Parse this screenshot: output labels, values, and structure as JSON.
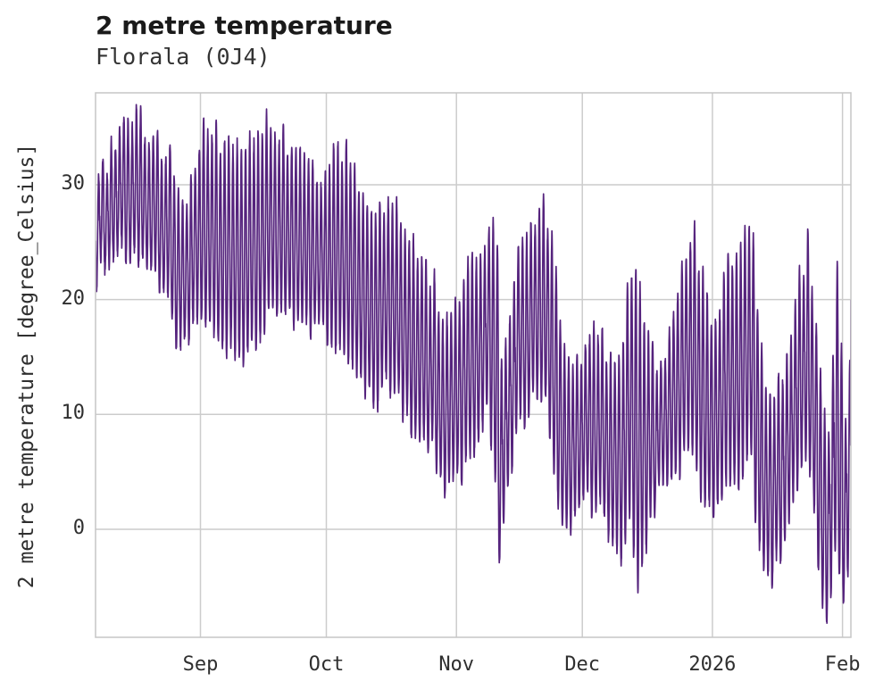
{
  "header": {
    "title": "2 metre temperature",
    "subtitle": "Florala (0J4)"
  },
  "chart_data": {
    "type": "line",
    "title": "2 metre temperature",
    "subtitle": "Florala (0J4)",
    "xlabel": "",
    "ylabel": "2 metre temperature [degree_Celsius]",
    "series_name": "2 metre temperature",
    "resolution": "hourly",
    "x_start_date": "2025-08-07",
    "x_end_date": "2026-02-03",
    "x_total_days": 180,
    "ylim": [
      -9.4,
      38.0
    ],
    "yticks": [
      30,
      20,
      10,
      0
    ],
    "xticks": [
      {
        "label": "Sep",
        "day": 25
      },
      {
        "label": "Oct",
        "day": 55
      },
      {
        "label": "Nov",
        "day": 86
      },
      {
        "label": "Dec",
        "day": 116
      },
      {
        "label": "2026",
        "day": 147
      },
      {
        "label": "Feb",
        "day": 178
      }
    ],
    "grid": true,
    "legend": "none",
    "line_color": "#55237d",
    "grid_color": "#cccccc",
    "spine_color": "#c6c6c6",
    "text_color": "#2f2f2f",
    "background_color": "#ffffff",
    "envelope_format": [
      "day_index",
      "date",
      "daily_min_c",
      "daily_max_c"
    ],
    "daily_envelope": [
      [
        0,
        "Aug 07",
        22,
        30.2
      ],
      [
        2,
        "Aug 09",
        23.5,
        32
      ],
      [
        5,
        "Aug 12",
        24,
        35.5
      ],
      [
        8,
        "Aug 15",
        23.5,
        36.3
      ],
      [
        11,
        "Aug 18",
        23,
        34.8
      ],
      [
        14,
        "Aug 21",
        22,
        33.5
      ],
      [
        17,
        "Aug 24",
        20,
        32.5
      ],
      [
        20,
        "Aug 27",
        15,
        27.5
      ],
      [
        22,
        "Aug 29",
        17,
        31.5
      ],
      [
        25,
        "Sep 01",
        18,
        35.8
      ],
      [
        28,
        "Sep 04",
        17,
        34.5
      ],
      [
        31,
        "Sep 07",
        16,
        33
      ],
      [
        34,
        "Sep 10",
        14.8,
        32
      ],
      [
        37,
        "Sep 13",
        15.5,
        33.5
      ],
      [
        40,
        "Sep 16",
        18,
        35.9
      ],
      [
        43,
        "Sep 19",
        19,
        34.5
      ],
      [
        46,
        "Sep 22",
        18.5,
        32.5
      ],
      [
        49,
        "Sep 25",
        18,
        31.5
      ],
      [
        52,
        "Sep 28",
        17.5,
        30.5
      ],
      [
        55,
        "Oct 01",
        16.5,
        32.5
      ],
      [
        58,
        "Oct 04",
        16,
        33.2
      ],
      [
        61,
        "Oct 07",
        14,
        31.5
      ],
      [
        64,
        "Oct 10",
        11.5,
        28.5
      ],
      [
        66,
        "Oct 12",
        10.9,
        27.5
      ],
      [
        69,
        "Oct 15",
        12.5,
        29.5
      ],
      [
        72,
        "Oct 18",
        11,
        27
      ],
      [
        74,
        "Oct 20",
        9.8,
        25.5
      ],
      [
        77,
        "Oct 23",
        8,
        23.2
      ],
      [
        80,
        "Oct 26",
        6.8,
        21.5
      ],
      [
        83,
        "Oct 29",
        4,
        17.5
      ],
      [
        85,
        "Oct 31",
        4.2,
        19.5
      ],
      [
        87,
        "Nov 02",
        4.5,
        21.5
      ],
      [
        90,
        "Nov 05",
        7,
        24
      ],
      [
        93,
        "Nov 08",
        10,
        26.5
      ],
      [
        95,
        "Nov 10",
        5,
        25
      ],
      [
        96,
        "Nov 11",
        -3.2,
        14
      ],
      [
        98,
        "Nov 13",
        4,
        18.5
      ],
      [
        100,
        "Nov 15",
        8,
        23.5
      ],
      [
        103,
        "Nov 18",
        11,
        27
      ],
      [
        106,
        "Nov 21",
        12,
        28.3
      ],
      [
        108,
        "Nov 23",
        9,
        26
      ],
      [
        110,
        "Nov 25",
        2,
        17.5
      ],
      [
        112,
        "Nov 27",
        -0.5,
        13.5
      ],
      [
        114,
        "Nov 29",
        1.5,
        15
      ],
      [
        117,
        "Dec 02",
        2.5,
        16.5
      ],
      [
        120,
        "Dec 05",
        1.5,
        16
      ],
      [
        123,
        "Dec 08",
        -1.5,
        14.5
      ],
      [
        125,
        "Dec 10",
        -4,
        17.5
      ],
      [
        127,
        "Dec 12",
        1.5,
        23.3
      ],
      [
        129,
        "Dec 14",
        -4.8,
        20.5
      ],
      [
        132,
        "Dec 17",
        0.5,
        15.5
      ],
      [
        134,
        "Dec 19",
        3,
        14
      ],
      [
        137,
        "Dec 22",
        4.5,
        18.5
      ],
      [
        140,
        "Dec 25",
        6,
        24.5
      ],
      [
        142,
        "Dec 27",
        7,
        25.8
      ],
      [
        145,
        "Dec 30",
        2,
        20
      ],
      [
        147,
        "Jan 01",
        0.5,
        18
      ],
      [
        150,
        "Jan 04",
        3,
        24.4
      ],
      [
        152,
        "Jan 06",
        4,
        24.3
      ],
      [
        155,
        "Jan 09",
        5,
        26.7
      ],
      [
        156,
        "Jan 10",
        6,
        26.5
      ],
      [
        157,
        "Jan 11",
        2,
        19.5
      ],
      [
        159,
        "Jan 13",
        -3.5,
        12
      ],
      [
        161,
        "Jan 15",
        -4.5,
        11
      ],
      [
        163,
        "Jan 17",
        -2,
        14
      ],
      [
        165,
        "Jan 19",
        0.5,
        16.5
      ],
      [
        167,
        "Jan 21",
        3.5,
        21.5
      ],
      [
        169,
        "Jan 23",
        6,
        25
      ],
      [
        171,
        "Jan 25",
        2,
        18
      ],
      [
        173,
        "Jan 27",
        -7,
        11
      ],
      [
        174,
        "Jan 28",
        -7.3,
        9.5
      ],
      [
        176,
        "Jan 30",
        -3,
        22.6
      ],
      [
        178,
        "Feb 01",
        -7.1,
        10
      ],
      [
        179,
        "Feb 02",
        -3,
        14.5
      ],
      [
        180,
        "Feb 03",
        2,
        21
      ]
    ]
  }
}
